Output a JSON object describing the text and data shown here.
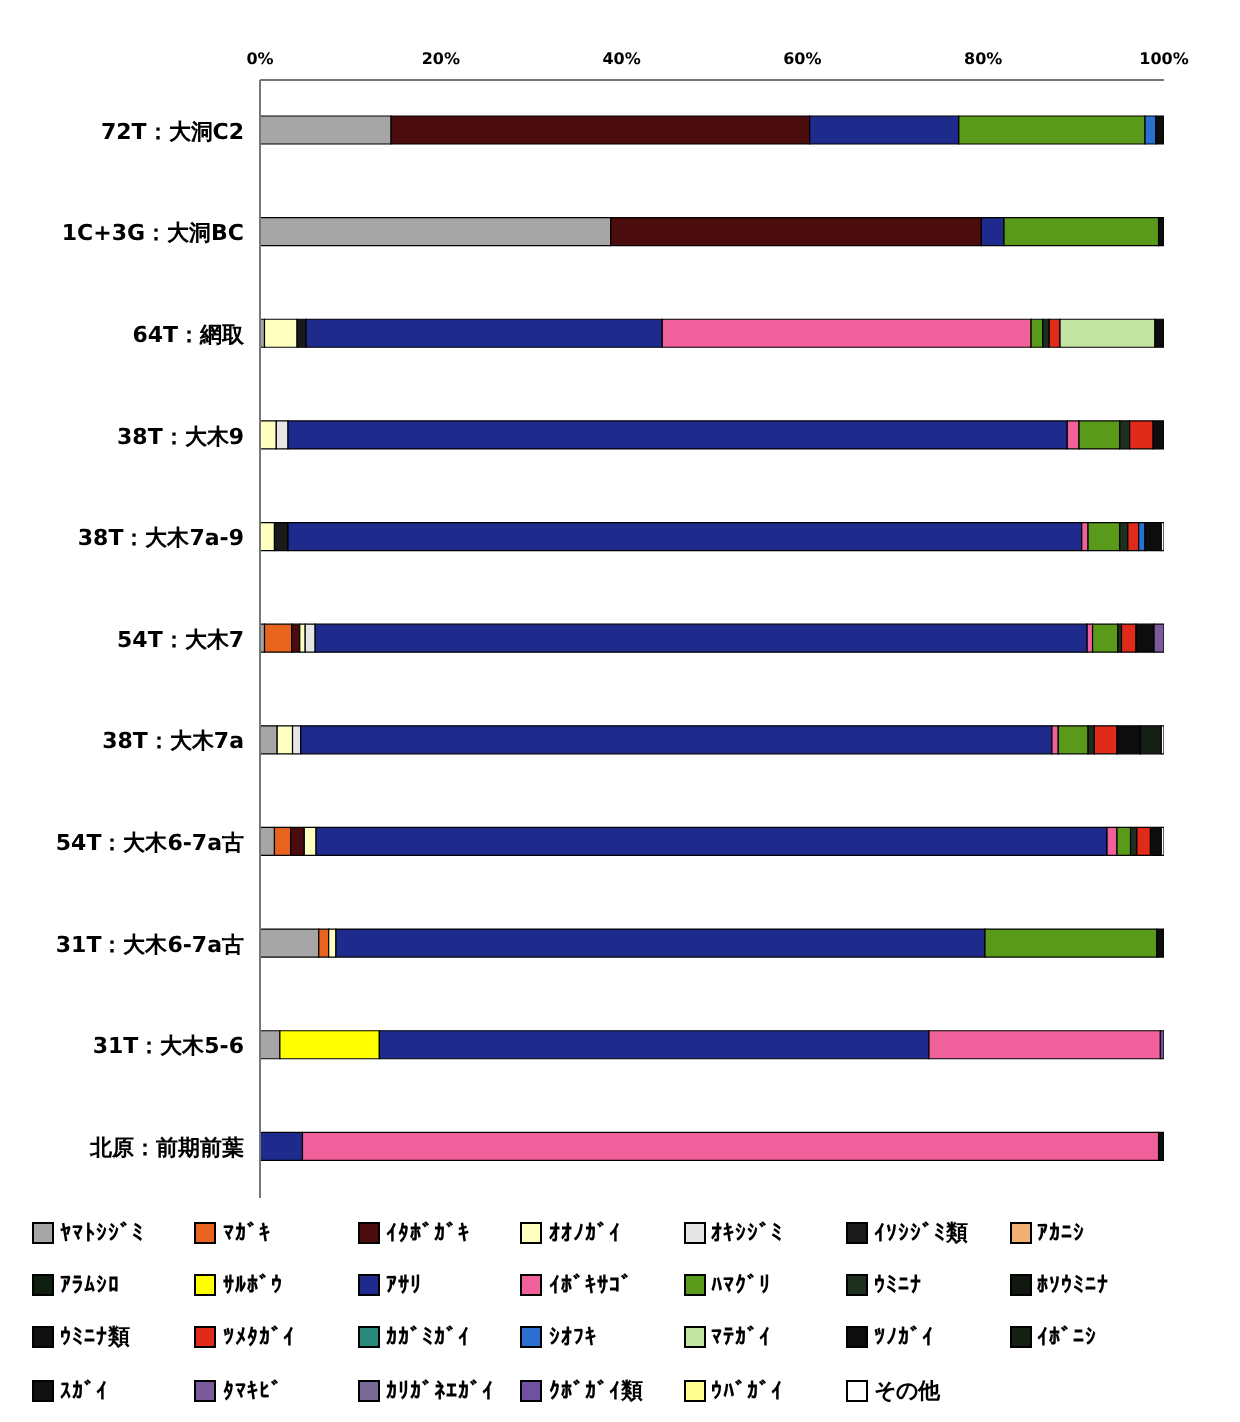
{
  "chart_data": {
    "type": "bar",
    "orientation": "horizontal",
    "stacked": true,
    "legend": "bottom",
    "grid": false,
    "categories": [
      "72T：大洞C2",
      "1C+3G：大洞BC",
      "64T：網取",
      "38T：大木9",
      "38T：大木7a-9",
      "54T：大木7",
      "38T：大木7a",
      "54T：大木6-7a古",
      "31T：大木6-7a古",
      "31T：大木5-6",
      "北原：前期前葉"
    ],
    "xlim": [
      0,
      100
    ],
    "xticks": [
      {
        "value": 0,
        "label": "0%"
      },
      {
        "value": 20,
        "label": "20%"
      },
      {
        "value": 40,
        "label": "40%"
      },
      {
        "value": 60,
        "label": "60%"
      },
      {
        "value": 80,
        "label": "80%"
      },
      {
        "value": 100,
        "label": "100%"
      }
    ],
    "series": [
      {
        "name": "ﾔﾏﾄｼｼﾞﾐ",
        "color": "#a6a6a6",
        "values": [
          14.5,
          38.8,
          0.5,
          null,
          null,
          0.5,
          1.9,
          1.6,
          6.5,
          2.2,
          null
        ]
      },
      {
        "name": "ﾏｶﾞｷ",
        "color": "#e8641e",
        "values": [
          null,
          null,
          null,
          null,
          null,
          3.0,
          null,
          1.8,
          1.1,
          null,
          null
        ]
      },
      {
        "name": "ｲﾀﾎﾞｶﾞｷ",
        "color": "#4a0c0c",
        "values": [
          46.3,
          41.0,
          null,
          null,
          null,
          0.9,
          null,
          1.5,
          null,
          null,
          null
        ]
      },
      {
        "name": "ｵｵﾉｶﾞｲ",
        "color": "#ffffc0",
        "values": [
          null,
          null,
          3.6,
          1.8,
          1.6,
          0.6,
          1.7,
          1.3,
          0.8,
          null,
          null
        ]
      },
      {
        "name": "ｵｷｼｼﾞﾐ",
        "color": "#e6e6e6",
        "values": [
          null,
          null,
          null,
          1.3,
          null,
          1.1,
          0.9,
          null,
          null,
          null,
          null
        ]
      },
      {
        "name": "ｲｿｼｼﾞﾐ類",
        "color": "#1a1a1a",
        "values": [
          null,
          null,
          1.0,
          null,
          1.5,
          null,
          null,
          null,
          null,
          null,
          null
        ]
      },
      {
        "name": "ｱｶﾆｼ",
        "color": "#f0b070",
        "values": [
          null,
          null,
          null,
          null,
          null,
          null,
          null,
          null,
          null,
          null,
          null
        ]
      },
      {
        "name": "ｱﾗﾑｼﾛ",
        "color": "#0f1f0f",
        "values": [
          null,
          null,
          null,
          null,
          null,
          null,
          null,
          null,
          null,
          null,
          null
        ]
      },
      {
        "name": "ｻﾙﾎﾞｳ",
        "color": "#ffff00",
        "values": [
          null,
          null,
          null,
          null,
          null,
          null,
          null,
          null,
          null,
          11.0,
          null
        ]
      },
      {
        "name": "ｱｻﾘ",
        "color": "#1e2a8c",
        "values": [
          16.5,
          2.5,
          39.4,
          86.2,
          87.8,
          85.4,
          83.1,
          87.5,
          71.8,
          60.8,
          4.7
        ]
      },
      {
        "name": "ｲﾎﾞｷｻｺﾞ",
        "color": "#f0609a",
        "values": [
          null,
          null,
          40.8,
          1.3,
          0.7,
          0.6,
          0.7,
          1.1,
          null,
          25.6,
          94.7
        ]
      },
      {
        "name": "ﾊﾏｸﾞﾘ",
        "color": "#5a9a1a",
        "values": [
          20.6,
          17.1,
          1.3,
          4.5,
          3.5,
          2.8,
          3.3,
          1.5,
          19.0,
          null,
          null
        ]
      },
      {
        "name": "ｳﾐﾆﾅ",
        "color": "#1f2f1f",
        "values": [
          null,
          null,
          0.7,
          1.1,
          0.9,
          0.4,
          0.7,
          0.7,
          null,
          null,
          null
        ]
      },
      {
        "name": "ﾎｿｳﾐﾆﾅ",
        "color": "#101810",
        "values": [
          null,
          null,
          null,
          null,
          null,
          null,
          null,
          null,
          null,
          null,
          null
        ]
      },
      {
        "name": "ｳﾐﾆﾅ類",
        "color": "#101010",
        "values": [
          null,
          null,
          null,
          null,
          null,
          null,
          null,
          null,
          null,
          null,
          null
        ]
      },
      {
        "name": "ﾂﾒﾀｶﾞｲ",
        "color": "#e02a1a",
        "values": [
          null,
          null,
          1.2,
          2.6,
          1.2,
          1.6,
          2.5,
          1.5,
          null,
          null,
          null
        ]
      },
      {
        "name": "ｶｶﾞﾐｶﾞｲ",
        "color": "#2a8a7a",
        "values": [
          null,
          null,
          null,
          null,
          null,
          null,
          null,
          null,
          null,
          null,
          null
        ]
      },
      {
        "name": "ｼｵﾌｷ",
        "color": "#2a70d0",
        "values": [
          1.2,
          null,
          null,
          null,
          0.7,
          null,
          null,
          null,
          null,
          null,
          null
        ]
      },
      {
        "name": "ﾏﾃｶﾞｲ",
        "color": "#c4e4a4",
        "values": [
          null,
          null,
          10.5,
          null,
          null,
          null,
          null,
          null,
          null,
          null,
          null
        ]
      },
      {
        "name": "ﾂﾉｶﾞｲ",
        "color": "#0d0d0d",
        "values": [
          0.9,
          0.6,
          1.0,
          1.2,
          1.8,
          2.0,
          2.6,
          1.2,
          0.8,
          null,
          0.6
        ]
      },
      {
        "name": "ｲﾎﾞﾆｼ",
        "color": "#142014",
        "values": [
          null,
          null,
          null,
          null,
          null,
          null,
          2.3,
          null,
          null,
          null,
          null
        ]
      },
      {
        "name": "ｽｶﾞｲ",
        "color": "#111111",
        "values": [
          null,
          null,
          null,
          null,
          null,
          null,
          null,
          null,
          null,
          null,
          null
        ]
      },
      {
        "name": "ﾀﾏｷﾋﾞ",
        "color": "#7a5a9a",
        "values": [
          null,
          null,
          null,
          null,
          null,
          1.1,
          null,
          null,
          null,
          null,
          null
        ]
      },
      {
        "name": "ｶﾘｶﾞﾈｴｶﾞｲ",
        "color": "#786a96",
        "values": [
          null,
          null,
          null,
          null,
          null,
          null,
          null,
          null,
          null,
          null,
          null
        ]
      },
      {
        "name": "ｸﾎﾞｶﾞｲ類",
        "color": "#7050a0",
        "values": [
          null,
          null,
          null,
          null,
          null,
          null,
          null,
          null,
          null,
          0.4,
          null
        ]
      },
      {
        "name": "ｳﾊﾞｶﾞｲ",
        "color": "#ffff90",
        "values": [
          null,
          null,
          null,
          null,
          null,
          null,
          null,
          null,
          null,
          null,
          null
        ]
      },
      {
        "name": "その他",
        "color": "#ffffff",
        "values": [
          null,
          null,
          null,
          null,
          0.3,
          null,
          0.3,
          0.3,
          null,
          null,
          null
        ]
      }
    ]
  }
}
